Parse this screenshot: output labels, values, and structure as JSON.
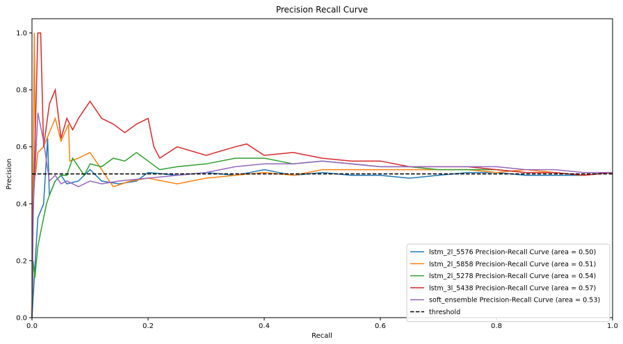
{
  "chart_data": {
    "type": "line",
    "title": "Precision Recall Curve",
    "xlabel": "Recall",
    "ylabel": "Precision",
    "xlim": [
      0.0,
      1.0
    ],
    "ylim": [
      0.0,
      1.05
    ],
    "xticks": [
      "0.0",
      "0.2",
      "0.4",
      "0.6",
      "0.8",
      "1.0"
    ],
    "yticks": [
      "0.0",
      "0.2",
      "0.4",
      "0.6",
      "0.8",
      "1.0"
    ],
    "grid": false,
    "legend_position": "lower right",
    "series": [
      {
        "name": "lstm_2l_5576 Precision-Recall Curve (area = 0.50)",
        "color": "#1f77b4",
        "style": "solid",
        "x": [
          0.0,
          0.01,
          0.02,
          0.027,
          0.03,
          0.04,
          0.05,
          0.06,
          0.08,
          0.1,
          0.12,
          0.15,
          0.18,
          0.2,
          0.25,
          0.3,
          0.35,
          0.4,
          0.45,
          0.5,
          0.55,
          0.6,
          0.65,
          0.7,
          0.75,
          0.8,
          0.85,
          0.9,
          0.95,
          1.0
        ],
        "y": [
          0.0,
          0.35,
          0.4,
          0.63,
          0.43,
          0.48,
          0.5,
          0.47,
          0.48,
          0.52,
          0.48,
          0.47,
          0.48,
          0.51,
          0.5,
          0.51,
          0.5,
          0.52,
          0.5,
          0.51,
          0.5,
          0.5,
          0.49,
          0.5,
          0.51,
          0.51,
          0.5,
          0.5,
          0.5,
          0.51
        ]
      },
      {
        "name": "lstm_2l_5858 Precision-Recall Curve (area = 0.51)",
        "color": "#ff7f0e",
        "style": "solid",
        "x": [
          0.0,
          0.004,
          0.006,
          0.01,
          0.02,
          0.03,
          0.04,
          0.05,
          0.063,
          0.065,
          0.08,
          0.1,
          0.12,
          0.14,
          0.17,
          0.2,
          0.25,
          0.3,
          0.35,
          0.4,
          0.45,
          0.5,
          0.55,
          0.6,
          0.65,
          0.7,
          0.75,
          0.8,
          0.85,
          0.9,
          0.95,
          1.0
        ],
        "y": [
          0.0,
          1.0,
          0.5,
          0.58,
          0.6,
          0.65,
          0.7,
          0.62,
          0.68,
          0.55,
          0.56,
          0.58,
          0.52,
          0.46,
          0.48,
          0.49,
          0.47,
          0.49,
          0.5,
          0.51,
          0.5,
          0.52,
          0.52,
          0.52,
          0.52,
          0.52,
          0.52,
          0.51,
          0.52,
          0.51,
          0.5,
          0.51
        ]
      },
      {
        "name": "lstm_2l_5278 Precision-Recall Curve (area = 0.54)",
        "color": "#2ca02c",
        "style": "solid",
        "x": [
          0.0,
          0.002,
          0.005,
          0.01,
          0.015,
          0.02,
          0.025,
          0.03,
          0.04,
          0.05,
          0.06,
          0.07,
          0.08,
          0.09,
          0.1,
          0.12,
          0.14,
          0.16,
          0.18,
          0.2,
          0.22,
          0.25,
          0.3,
          0.35,
          0.4,
          0.45,
          0.5,
          0.55,
          0.6,
          0.65,
          0.7,
          0.75,
          0.8,
          0.85,
          0.9,
          0.95,
          1.0
        ],
        "y": [
          0.0,
          0.2,
          0.14,
          0.25,
          0.3,
          0.35,
          0.4,
          0.43,
          0.48,
          0.5,
          0.5,
          0.56,
          0.53,
          0.5,
          0.54,
          0.53,
          0.56,
          0.55,
          0.58,
          0.55,
          0.52,
          0.53,
          0.54,
          0.56,
          0.56,
          0.54,
          0.55,
          0.54,
          0.53,
          0.53,
          0.52,
          0.52,
          0.52,
          0.51,
          0.51,
          0.5,
          0.51
        ]
      },
      {
        "name": "lstm_3l_5438 Precision-Recall Curve (area = 0.57)",
        "color": "#d62728",
        "style": "solid",
        "x": [
          0.0,
          0.002,
          0.005,
          0.01,
          0.015,
          0.02,
          0.03,
          0.04,
          0.05,
          0.06,
          0.07,
          0.08,
          0.09,
          0.1,
          0.12,
          0.14,
          0.16,
          0.18,
          0.2,
          0.21,
          0.22,
          0.25,
          0.3,
          0.35,
          0.37,
          0.4,
          0.45,
          0.5,
          0.55,
          0.6,
          0.65,
          0.7,
          0.75,
          0.8,
          0.85,
          0.9,
          0.95,
          1.0
        ],
        "y": [
          0.0,
          0.35,
          0.6,
          1.0,
          1.0,
          0.6,
          0.75,
          0.8,
          0.63,
          0.7,
          0.66,
          0.7,
          0.73,
          0.76,
          0.7,
          0.68,
          0.65,
          0.68,
          0.7,
          0.6,
          0.56,
          0.6,
          0.57,
          0.6,
          0.61,
          0.57,
          0.58,
          0.56,
          0.55,
          0.55,
          0.53,
          0.53,
          0.53,
          0.52,
          0.51,
          0.51,
          0.5,
          0.51
        ]
      },
      {
        "name": "soft_ensemble Precision-Recall Curve (area = 0.53)",
        "color": "#9467bd",
        "style": "solid",
        "x": [
          0.0,
          0.002,
          0.005,
          0.01,
          0.02,
          0.03,
          0.04,
          0.05,
          0.06,
          0.07,
          0.08,
          0.1,
          0.12,
          0.15,
          0.2,
          0.25,
          0.3,
          0.35,
          0.4,
          0.45,
          0.5,
          0.55,
          0.6,
          0.65,
          0.7,
          0.75,
          0.8,
          0.85,
          0.9,
          0.95,
          1.0
        ],
        "y": [
          0.0,
          0.4,
          0.5,
          0.72,
          0.62,
          0.48,
          0.5,
          0.47,
          0.48,
          0.47,
          0.46,
          0.48,
          0.47,
          0.48,
          0.49,
          0.5,
          0.51,
          0.53,
          0.54,
          0.54,
          0.55,
          0.54,
          0.53,
          0.53,
          0.53,
          0.53,
          0.53,
          0.52,
          0.52,
          0.51,
          0.51
        ]
      },
      {
        "name": "threshold",
        "color": "#000000",
        "style": "dashed",
        "x": [
          0.0,
          1.0
        ],
        "y": [
          0.505,
          0.505
        ]
      }
    ]
  }
}
